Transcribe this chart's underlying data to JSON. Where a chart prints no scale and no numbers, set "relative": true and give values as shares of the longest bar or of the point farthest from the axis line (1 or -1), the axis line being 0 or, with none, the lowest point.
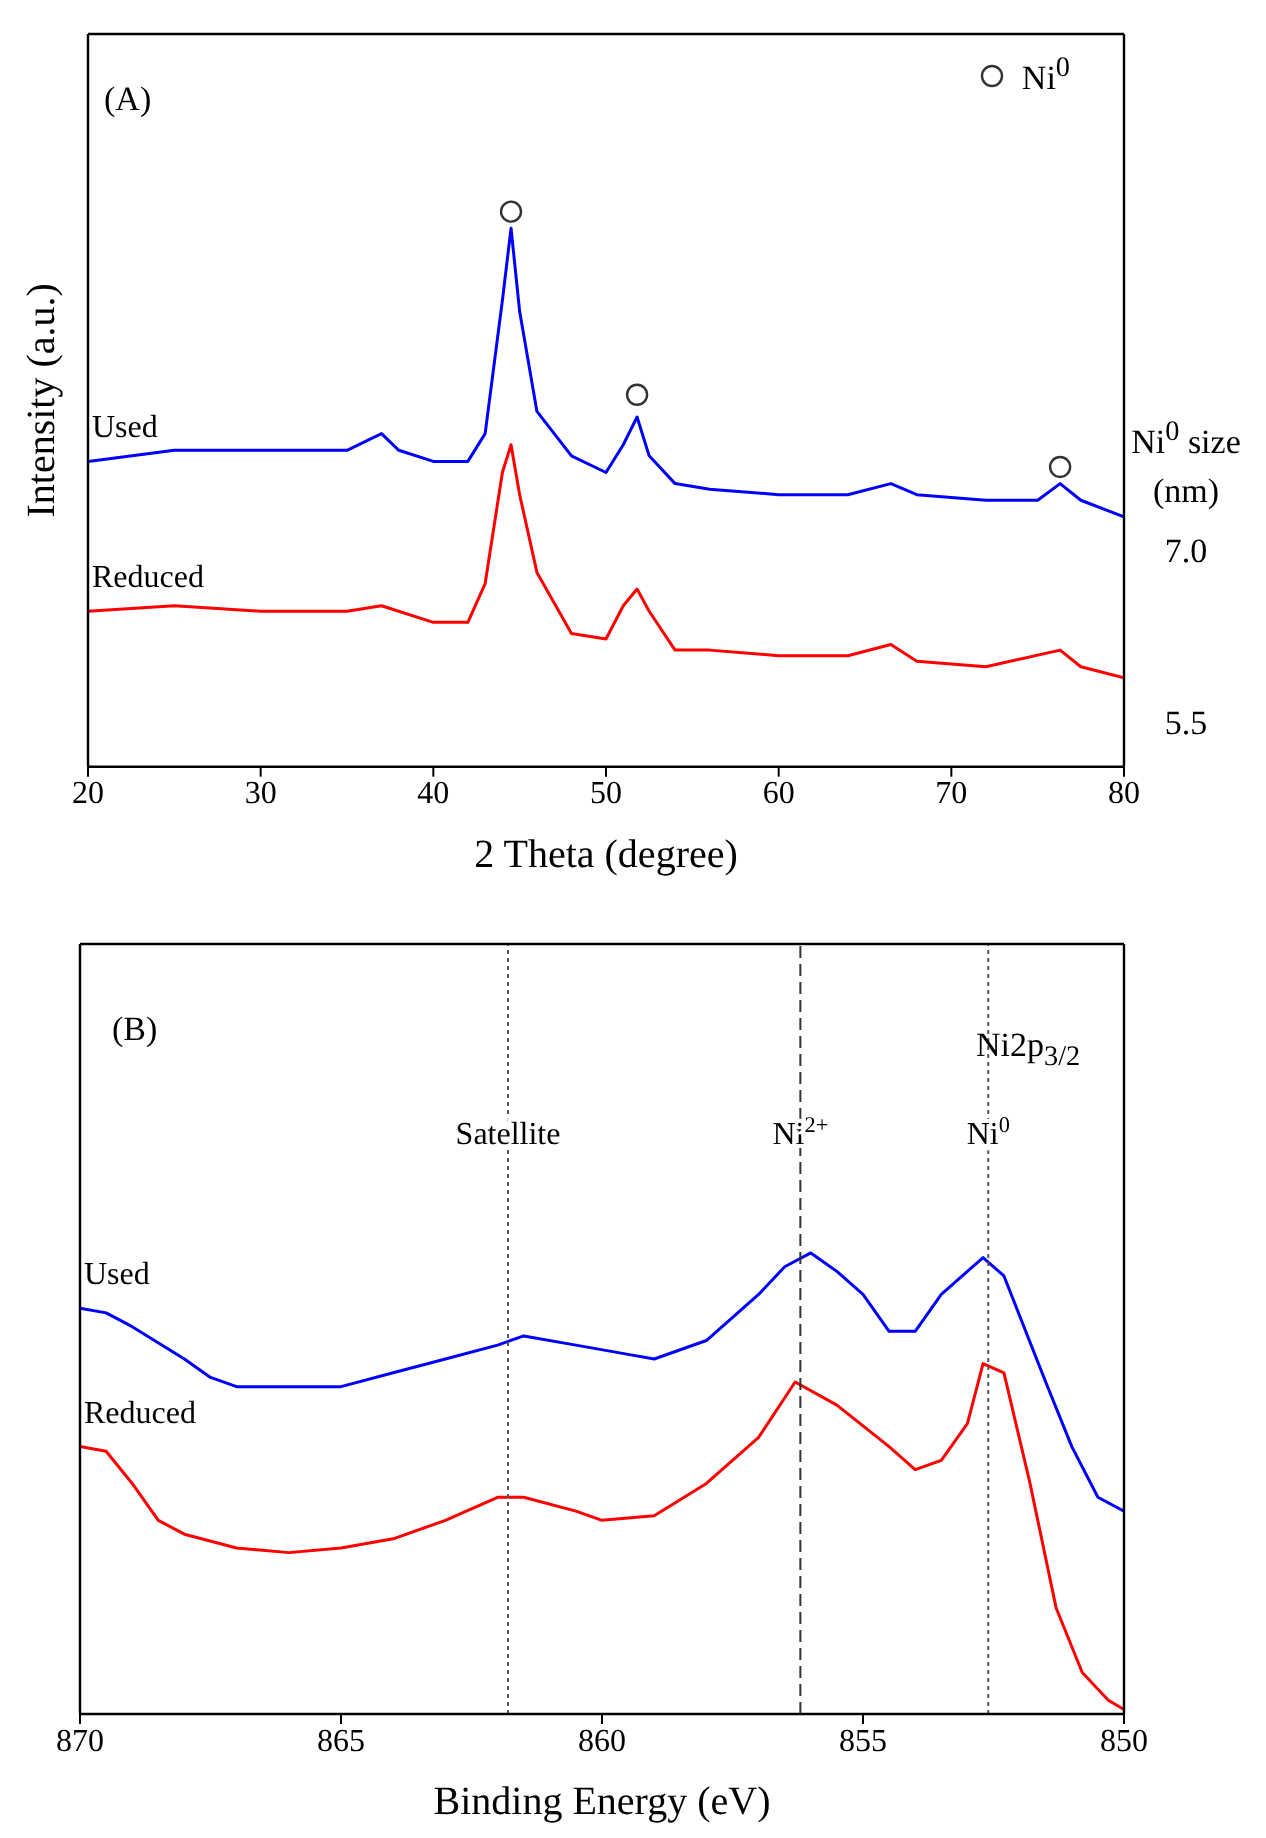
{
  "chart_data": [
    {
      "type": "line",
      "relative": true,
      "xlabel": "2 Theta (degree)",
      "ylabel": "Intensity (a.u.)",
      "xlim": [
        20,
        80
      ],
      "xticks": [
        20,
        30,
        40,
        50,
        60,
        70,
        80
      ],
      "grid": false,
      "legend": "top right",
      "annotations": [
        "(A)",
        "Ni$^{0}$ size (nm)",
        "7.0",
        "5.5"
      ],
      "series": [
        {
          "name": "Used",
          "color": "#0000ff",
          "x": [
            20,
            25,
            30,
            35,
            37,
            38,
            40,
            42,
            43,
            44,
            44.5,
            45,
            46,
            48,
            50,
            51,
            51.8,
            52.5,
            54,
            56,
            60,
            64,
            66.5,
            68,
            72,
            75,
            76.3,
            77.5,
            80
          ],
          "values": [
            0.55,
            0.57,
            0.57,
            0.57,
            0.6,
            0.57,
            0.55,
            0.55,
            0.6,
            0.84,
            0.97,
            0.82,
            0.64,
            0.56,
            0.53,
            0.58,
            0.63,
            0.56,
            0.51,
            0.5,
            0.49,
            0.49,
            0.51,
            0.49,
            0.48,
            0.48,
            0.51,
            0.48,
            0.45
          ]
        },
        {
          "name": "Reduced",
          "color": "#ff0000",
          "x": [
            20,
            25,
            30,
            35,
            37,
            40,
            42,
            43,
            44,
            44.5,
            45,
            46,
            48,
            50,
            51,
            51.8,
            52.5,
            54,
            56,
            60,
            64,
            66.5,
            68,
            72,
            76.3,
            77.5,
            80
          ],
          "values": [
            0.28,
            0.29,
            0.28,
            0.28,
            0.29,
            0.26,
            0.26,
            0.33,
            0.53,
            0.58,
            0.49,
            0.35,
            0.24,
            0.23,
            0.29,
            0.32,
            0.28,
            0.21,
            0.21,
            0.2,
            0.2,
            0.22,
            0.19,
            0.18,
            0.21,
            0.18,
            0.16
          ]
        },
        {
          "name": "Ni$^{0}$",
          "type": "scatter",
          "color": "#333333",
          "x": [
            44.5,
            51.8,
            76.3
          ],
          "values": [
            1.0,
            0.67,
            0.54
          ]
        }
      ]
    },
    {
      "type": "line",
      "relative": true,
      "xlabel": "Binding Energy (eV)",
      "xlim": [
        870,
        850
      ],
      "xticks": [
        870,
        865,
        860,
        855,
        850
      ],
      "grid": false,
      "annotations": [
        "(B)",
        "Ni2p$_{3/2}$"
      ],
      "ref_lines": [
        {
          "axis": "x",
          "value": 861.8,
          "label": "Satellite",
          "color": "#555555",
          "line_style": "dotted"
        },
        {
          "axis": "x",
          "value": 856.2,
          "label": "Ni$^{2+}$",
          "color": "#333333",
          "line_style": "dashed"
        },
        {
          "axis": "x",
          "value": 852.6,
          "label": "Ni$^{0}$",
          "color": "#555555",
          "line_style": "dotted"
        }
      ],
      "series": [
        {
          "name": "Used",
          "color": "#0000ff",
          "x": [
            870,
            869.5,
            869,
            868,
            867.5,
            867,
            866,
            865,
            864,
            863,
            862,
            861.5,
            860.5,
            859.5,
            859,
            858,
            857,
            856.5,
            856,
            855.5,
            855,
            854.5,
            854,
            853.5,
            853,
            852.7,
            852.3,
            851.5,
            851,
            850.5,
            850
          ],
          "values": [
            0.88,
            0.87,
            0.84,
            0.77,
            0.73,
            0.71,
            0.71,
            0.71,
            0.74,
            0.77,
            0.8,
            0.82,
            0.8,
            0.78,
            0.77,
            0.81,
            0.91,
            0.97,
            1.0,
            0.96,
            0.91,
            0.83,
            0.83,
            0.91,
            0.96,
            0.99,
            0.95,
            0.72,
            0.58,
            0.47,
            0.44
          ]
        },
        {
          "name": "Reduced",
          "color": "#ff0000",
          "x": [
            870,
            869.5,
            869,
            868.5,
            868,
            867,
            866,
            865,
            864,
            863,
            862,
            861.5,
            860.5,
            860,
            859,
            858,
            857,
            856.3,
            855.5,
            854.5,
            854,
            853.5,
            853,
            852.7,
            852.3,
            851.8,
            851.3,
            850.8,
            850.3,
            850
          ],
          "values": [
            0.58,
            0.57,
            0.5,
            0.42,
            0.39,
            0.36,
            0.35,
            0.36,
            0.38,
            0.42,
            0.47,
            0.47,
            0.44,
            0.42,
            0.43,
            0.5,
            0.6,
            0.72,
            0.67,
            0.58,
            0.53,
            0.55,
            0.63,
            0.76,
            0.74,
            0.5,
            0.23,
            0.09,
            0.03,
            0.01
          ]
        }
      ]
    }
  ]
}
